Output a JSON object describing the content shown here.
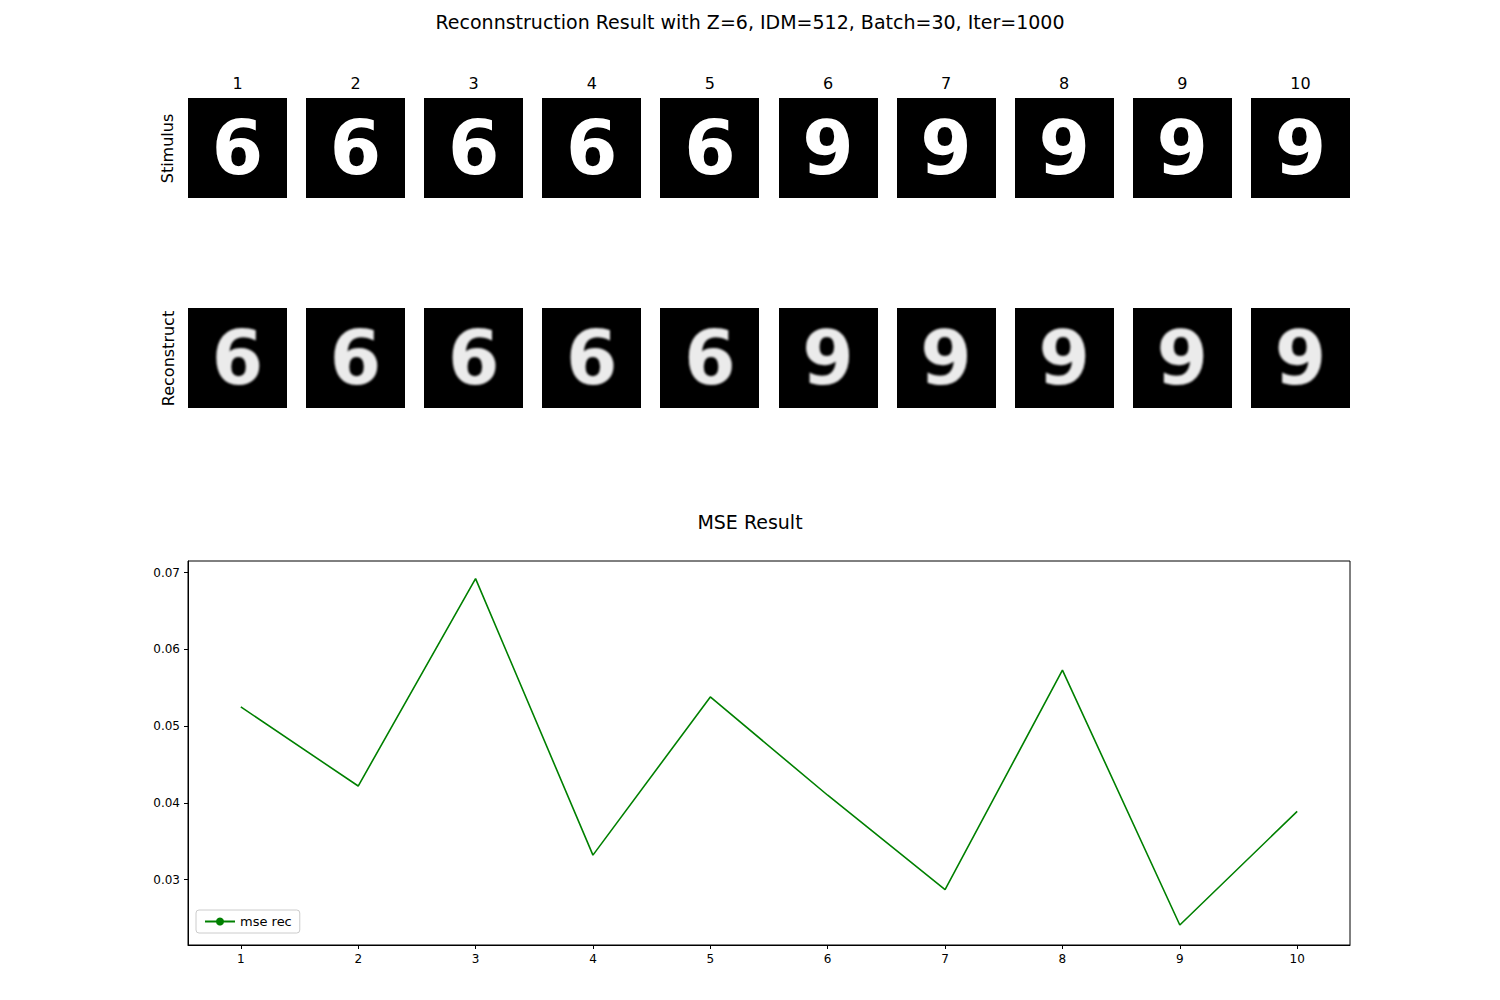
{
  "chart_data": {
    "type": "line",
    "title": "MSE Result",
    "x": [
      1,
      2,
      3,
      4,
      5,
      6,
      7,
      8,
      9,
      10
    ],
    "series": [
      {
        "name": "mse rec",
        "color": "#008000",
        "values": [
          0.0525,
          0.0422,
          0.0692,
          0.0332,
          0.0538,
          0.041,
          0.0287,
          0.0573,
          0.0241,
          0.0389
        ]
      }
    ],
    "xlim": [
      0.55,
      10.45
    ],
    "xticks": [
      1,
      2,
      3,
      4,
      5,
      6,
      7,
      8,
      9,
      10
    ],
    "ylim": [
      0.0215,
      0.0715
    ],
    "yticks": [
      0.03,
      0.04,
      0.05,
      0.06,
      0.07
    ],
    "legend": "lower left",
    "grid": false
  },
  "figure": {
    "title": "Reconnstruction Result with Z=6, IDM=512, Batch=30, Iter=1000",
    "columns": [
      "1",
      "2",
      "3",
      "4",
      "5",
      "6",
      "7",
      "8",
      "9",
      "10"
    ],
    "rows": [
      "Stimulus",
      "Reconstruct"
    ],
    "stimulus_digits": [
      "6",
      "6",
      "6",
      "6",
      "6",
      "9",
      "9",
      "9",
      "9",
      "9"
    ],
    "reconstruct_digits": [
      "6",
      "6",
      "6",
      "6",
      "6",
      "9",
      "9",
      "9",
      "9",
      "9"
    ]
  }
}
